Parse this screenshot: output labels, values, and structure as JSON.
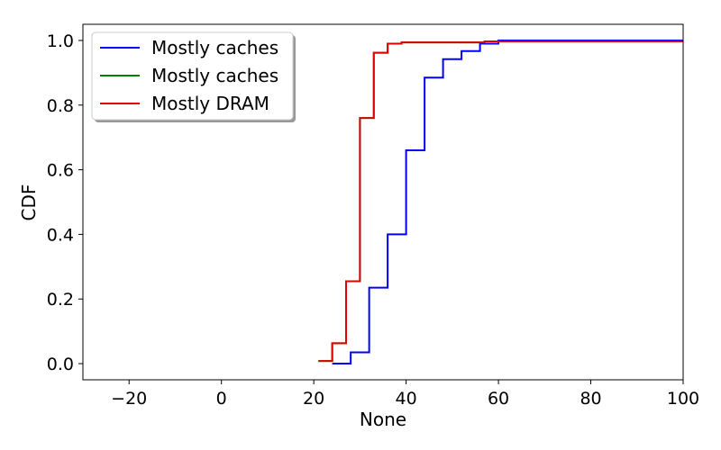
{
  "chart_data": {
    "type": "line",
    "xlabel": "None",
    "ylabel": "CDF",
    "xlim": [
      -30,
      100
    ],
    "ylim": [
      -0.05,
      1.05
    ],
    "xticks": [
      -20,
      0,
      20,
      40,
      60,
      80,
      100
    ],
    "yticks": [
      0.0,
      0.2,
      0.4,
      0.6,
      0.8,
      1.0
    ],
    "xtick_labels": [
      "−20",
      "0",
      "20",
      "40",
      "60",
      "80",
      "100"
    ],
    "ytick_labels": [
      "0.0",
      "0.2",
      "0.4",
      "0.6",
      "0.8",
      "1.0"
    ],
    "grid": false,
    "legend_position": "upper-left",
    "series": [
      {
        "name": "Mostly caches",
        "color": "#0000ff",
        "step": true,
        "x": [
          24,
          28,
          32,
          36,
          40,
          44,
          48,
          52,
          56,
          60,
          100
        ],
        "y": [
          0.0,
          0.035,
          0.235,
          0.4,
          0.66,
          0.885,
          0.942,
          0.967,
          0.99,
          1.0,
          1.0
        ]
      },
      {
        "name": "Mostly caches",
        "color": "#008000",
        "step": true,
        "x": [
          21,
          24,
          27,
          30,
          33,
          36,
          39,
          57,
          100
        ],
        "y": [
          0.008,
          0.063,
          0.255,
          0.76,
          0.962,
          0.99,
          0.994,
          0.997,
          0.997
        ]
      },
      {
        "name": "Mostly DRAM",
        "color": "#e00000",
        "step": true,
        "x": [
          21,
          24,
          27,
          30,
          33,
          36,
          39,
          57,
          100
        ],
        "y": [
          0.008,
          0.063,
          0.255,
          0.76,
          0.962,
          0.99,
          0.994,
          0.997,
          0.997
        ]
      }
    ]
  }
}
